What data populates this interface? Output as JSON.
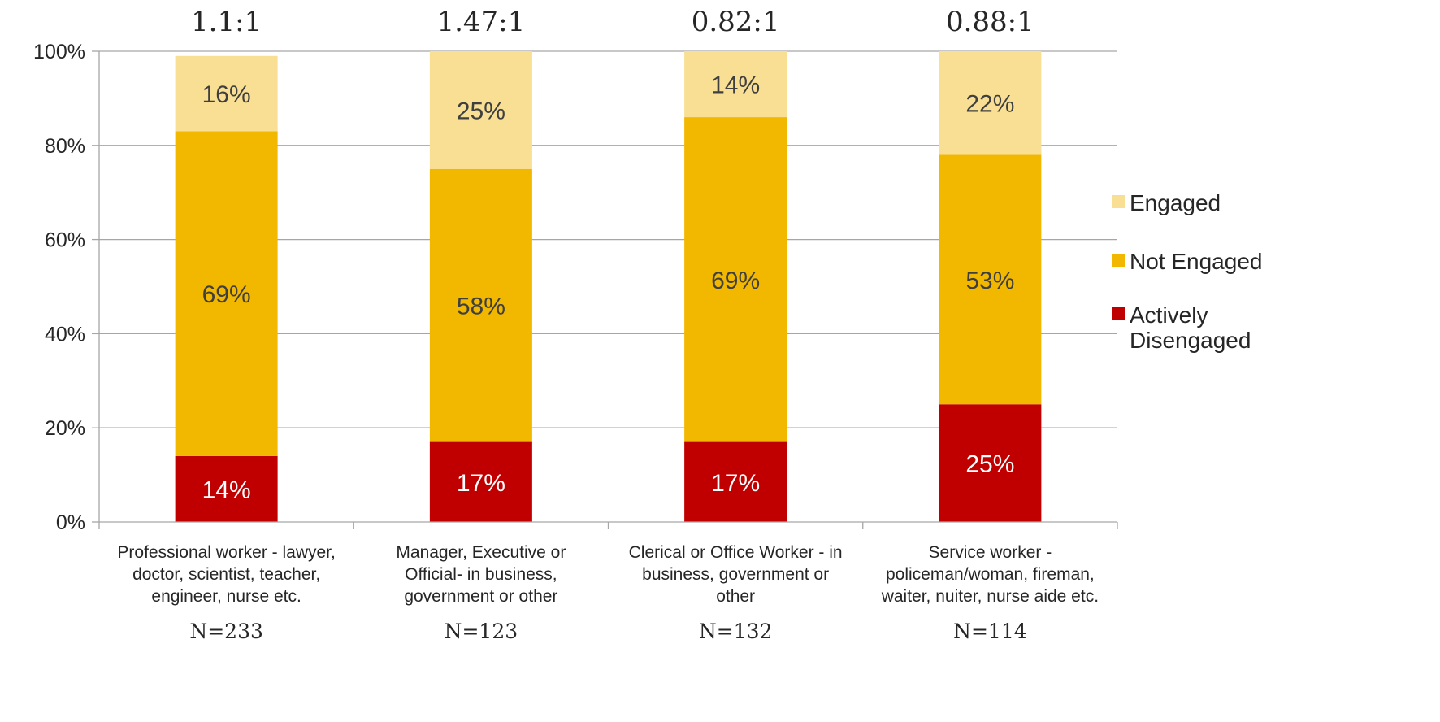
{
  "chart_data": {
    "type": "bar",
    "stacked": true,
    "percent": true,
    "ylim": [
      0,
      100
    ],
    "yticks": [
      "0%",
      "20%",
      "40%",
      "60%",
      "80%",
      "100%"
    ],
    "grid": true,
    "legend_position": "right",
    "categories": [
      [
        "Professional worker - lawyer,",
        "doctor, scientist, teacher,",
        "engineer, nurse  etc."
      ],
      [
        "Manager, Executive or",
        "Official- in business,",
        "government or other"
      ],
      [
        "Clerical or Office Worker - in",
        "business, government or",
        "other"
      ],
      [
        "Service worker -",
        "policeman/woman, fireman,",
        "waiter, nuiter, nurse aide etc."
      ]
    ],
    "ratios": [
      "1.1:1",
      "1.47:1",
      "0.82:1",
      "0.88:1"
    ],
    "sample_sizes": [
      "N=233",
      "N=123",
      "N=132",
      "N=114"
    ],
    "series": [
      {
        "name": "Actively Disengaged",
        "legend_lines": [
          "Actively",
          "Disengaged"
        ],
        "color": "#C00000",
        "label_color": "#FFFFFF",
        "values": [
          14,
          17,
          17,
          25
        ],
        "labels": [
          "14%",
          "17%",
          "17%",
          "25%"
        ]
      },
      {
        "name": "Not Engaged",
        "legend_lines": [
          "Not Engaged"
        ],
        "color": "#F2B800",
        "label_color": "#3F3F3F",
        "values": [
          69,
          58,
          69,
          53
        ],
        "labels": [
          "69%",
          "58%",
          "69%",
          "53%"
        ]
      },
      {
        "name": "Engaged",
        "legend_lines": [
          "Engaged"
        ],
        "color": "#F8DF94",
        "label_color": "#3F3F3F",
        "values": [
          16,
          25,
          14,
          22
        ],
        "labels": [
          "16%",
          "25%",
          "14%",
          "22%"
        ]
      }
    ],
    "axis_color": "#A6A6A6",
    "grid_color": "#A6A6A6"
  }
}
